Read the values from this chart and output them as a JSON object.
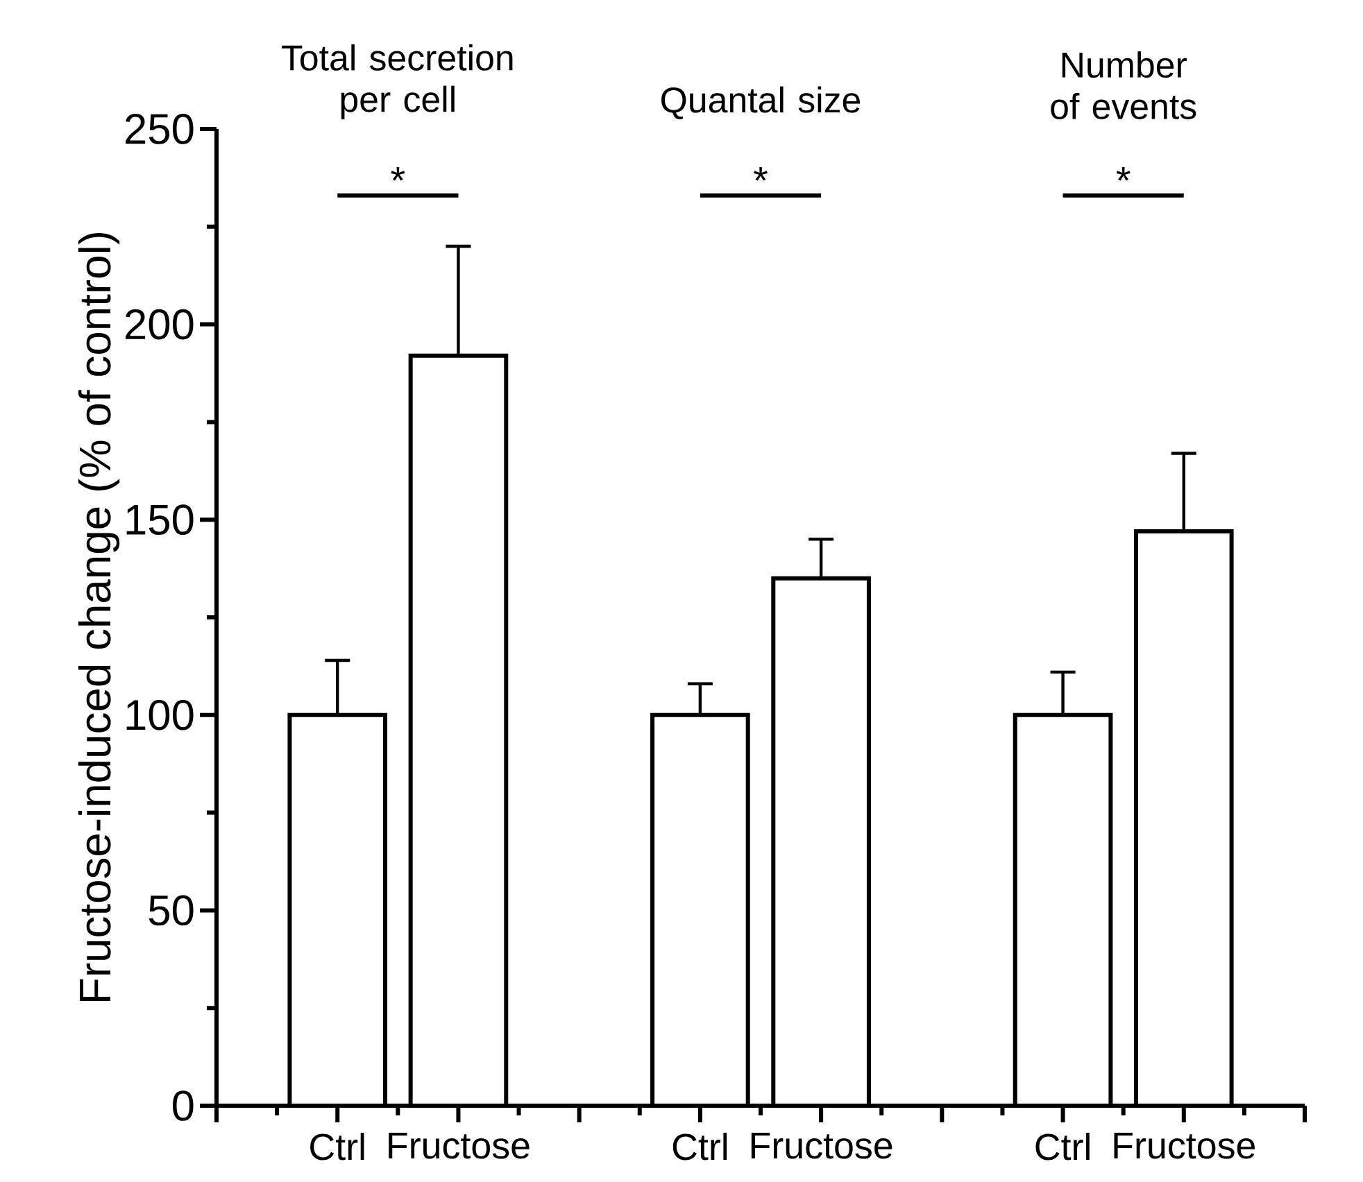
{
  "chart_data": {
    "type": "bar",
    "ylabel": "Fructose-induced change (% of control)",
    "categories": [
      "Ctrl",
      "Fructose",
      null,
      "Ctrl",
      "Fructose",
      null,
      "Ctrl",
      "Fructose"
    ],
    "values": [
      100,
      192,
      null,
      100,
      135,
      null,
      100,
      147
    ],
    "errors": [
      [
        100,
        114
      ],
      [
        192,
        220
      ],
      null,
      [
        100,
        108
      ],
      [
        135,
        145
      ],
      null,
      [
        100,
        111
      ],
      [
        147,
        167
      ]
    ],
    "color": "#ffffff",
    "ylim": [
      0,
      250
    ],
    "yticks": [
      0,
      50,
      100,
      150,
      200,
      250
    ],
    "annotations": [
      "Total secretion per cell",
      "Quantal size",
      "Number of events",
      "*",
      "*",
      "*"
    ]
  }
}
